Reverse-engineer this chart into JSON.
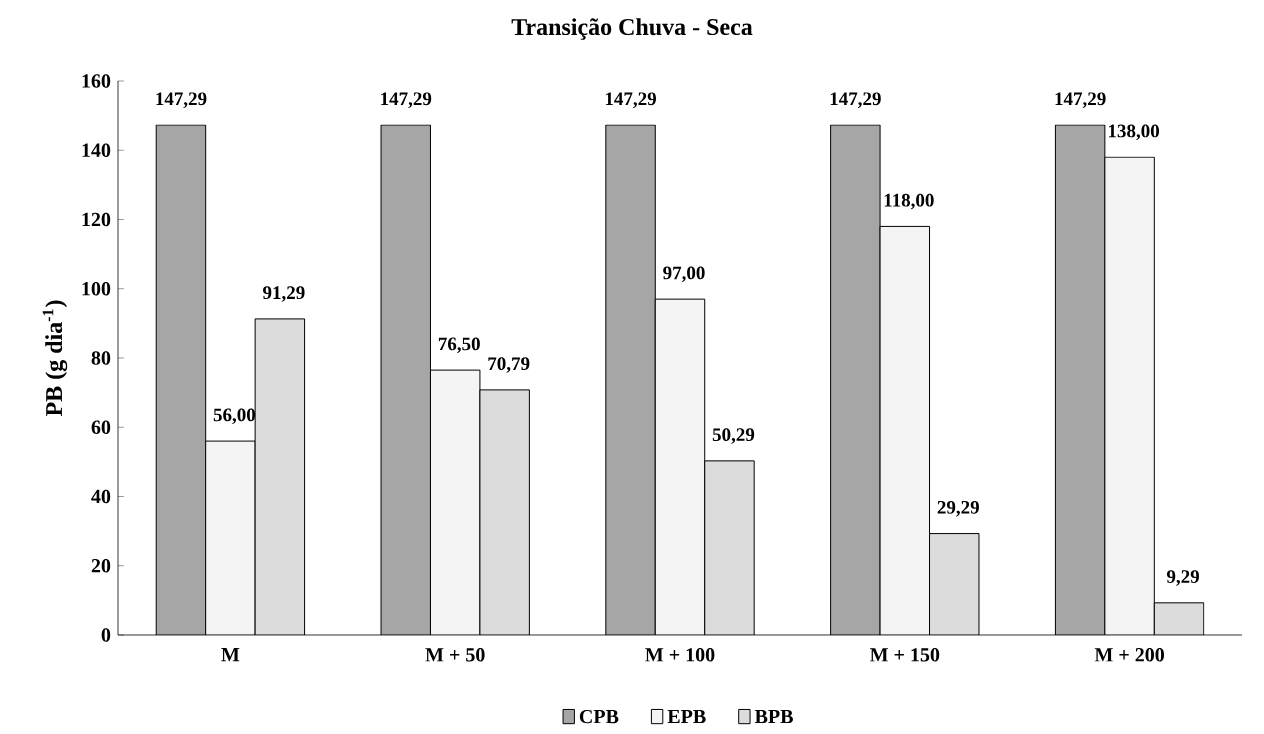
{
  "chart_data": {
    "type": "bar",
    "title": "Transição Chuva - Seca",
    "ylabel": "PB (g dia$^{-1}$)",
    "categories": [
      "M",
      "M + 50",
      "M + 100",
      "M + 150",
      "M + 200"
    ],
    "series": [
      {
        "name": "CPB",
        "color": "#a6a6a6",
        "values": [
          147.29,
          147.29,
          147.29,
          147.29,
          147.29
        ],
        "value_labels": [
          "147,29",
          "147,29",
          "147,29",
          "147,29",
          "147,29"
        ]
      },
      {
        "name": "EPB",
        "color": "#f4f4f4",
        "values": [
          56.0,
          76.5,
          97.0,
          118.0,
          138.0
        ],
        "value_labels": [
          "56,00",
          "76,50",
          "97,00",
          "118,00",
          "138,00"
        ]
      },
      {
        "name": "BPB",
        "color": "#dcdcdc",
        "values": [
          91.29,
          70.79,
          50.29,
          29.29,
          9.29
        ],
        "value_labels": [
          "91,29",
          "70,79",
          "50,29",
          "29,29",
          "9,29"
        ]
      }
    ],
    "ylim": [
      0,
      160
    ],
    "yticks": [
      0,
      20,
      40,
      60,
      80,
      100,
      120,
      140,
      160
    ],
    "grid": false,
    "legend": "bottom"
  }
}
